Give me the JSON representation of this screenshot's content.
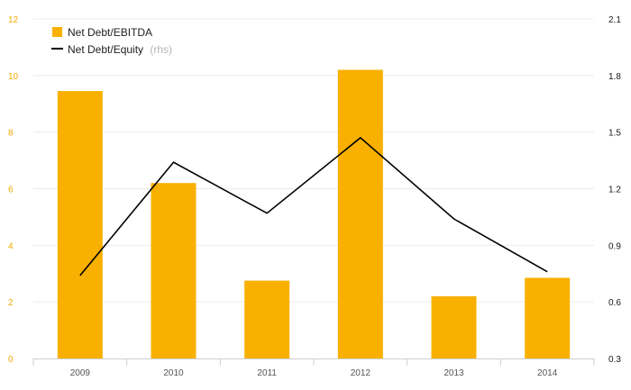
{
  "chart_data": {
    "type": "bar+line",
    "categories": [
      "2009",
      "2010",
      "2011",
      "2012",
      "2013",
      "2014"
    ],
    "series": [
      {
        "name": "Net Debt/EBITDA",
        "type": "bar",
        "axis": "left",
        "color": "#f9b000",
        "values": [
          9.45,
          6.2,
          2.75,
          10.2,
          2.2,
          2.85
        ]
      },
      {
        "name": "Net Debt/Equity",
        "name_note": "(rhs)",
        "type": "line",
        "axis": "right",
        "color": "#000000",
        "values": [
          0.74,
          1.34,
          1.07,
          1.47,
          1.04,
          0.76
        ]
      }
    ],
    "left_axis": {
      "min": 0,
      "max": 12,
      "ticks": [
        "0",
        "2",
        "4",
        "6",
        "8",
        "10",
        "12"
      ],
      "color": "#f2a900"
    },
    "right_axis": {
      "min": 0.3,
      "max": 2.1,
      "ticks": [
        "0.3",
        "0.6",
        "0.9",
        "1.2",
        "1.5",
        "1.8",
        "2.1"
      ],
      "color": "#1a1a1a"
    },
    "grid": true,
    "legend_position": "top-left"
  }
}
